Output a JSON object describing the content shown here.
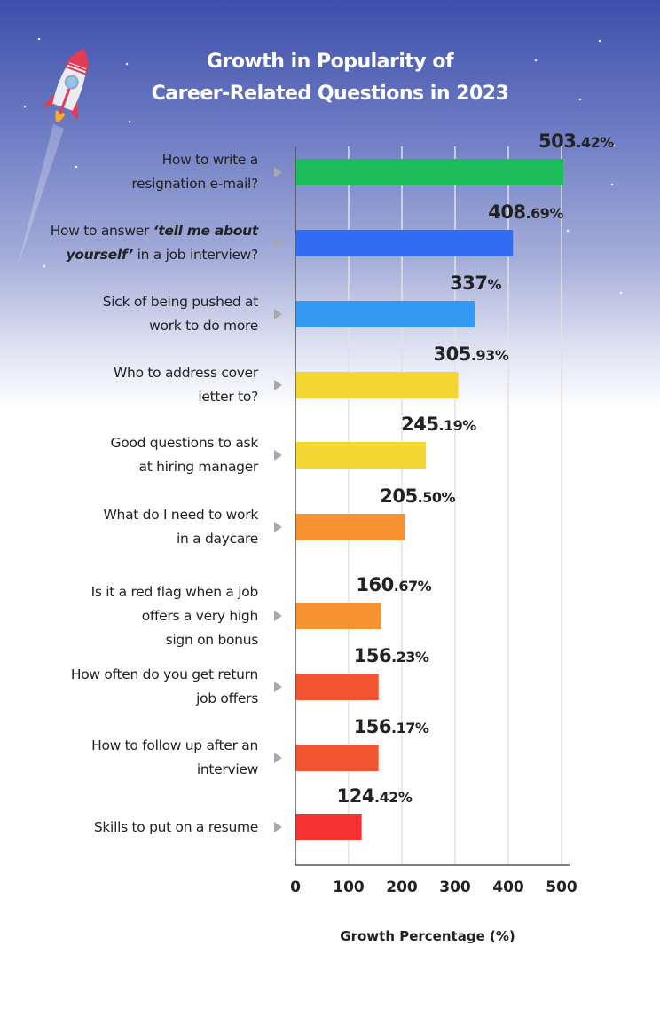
{
  "chart_data": {
    "type": "bar",
    "orientation": "horizontal",
    "title": "Growth in Popularity of Career-Related Questions in 2023",
    "title_lines": [
      "Growth in Popularity of",
      "Career-Related Questions in 2023"
    ],
    "xlabel": "Growth Percentage (%)",
    "ylabel": "",
    "xlim": [
      0,
      500
    ],
    "xticks": [
      "0",
      "100",
      "200",
      "300",
      "400",
      "500"
    ],
    "grid": true,
    "categories": [
      {
        "lines": [
          [
            [
              "How to write a",
              false
            ]
          ],
          [
            [
              "resignation e-mail?",
              false
            ]
          ]
        ],
        "value": 503.42,
        "label": "503.42%",
        "color": "#1dbd5b"
      },
      {
        "lines": [
          [
            [
              "How to answer ",
              false
            ],
            [
              "‘tell me about",
              true
            ]
          ],
          [
            [
              "yourself’",
              true
            ],
            [
              " in a job interview?",
              false
            ]
          ]
        ],
        "value": 408.69,
        "label": "408.69%",
        "color": "#316df3"
      },
      {
        "lines": [
          [
            [
              "Sick of being pushed at",
              false
            ]
          ],
          [
            [
              "work to do more",
              false
            ]
          ]
        ],
        "value": 337,
        "label": "337%",
        "color": "#3399f3"
      },
      {
        "lines": [
          [
            [
              "Who to address cover",
              false
            ]
          ],
          [
            [
              "letter to?",
              false
            ]
          ]
        ],
        "value": 305.93,
        "label": "305.93%",
        "color": "#f4d630"
      },
      {
        "lines": [
          [
            [
              "Good questions to ask",
              false
            ]
          ],
          [
            [
              "at hiring manager",
              false
            ]
          ]
        ],
        "value": 245.19,
        "label": "245.19%",
        "color": "#f4d630"
      },
      {
        "lines": [
          [
            [
              "What do I need to work",
              false
            ]
          ],
          [
            [
              "in a daycare",
              false
            ]
          ]
        ],
        "value": 205.5,
        "label": "205.50%",
        "color": "#f6922f"
      },
      {
        "lines": [
          [
            [
              "Is it a red flag when a job",
              false
            ]
          ],
          [
            [
              "offers a very high",
              false
            ]
          ],
          [
            [
              "sign on bonus",
              false
            ]
          ]
        ],
        "value": 160.67,
        "label": "160.67%",
        "color": "#f6922f"
      },
      {
        "lines": [
          [
            [
              "How often do you get return",
              false
            ]
          ],
          [
            [
              "job offers",
              false
            ]
          ]
        ],
        "value": 156.23,
        "label": "156.23%",
        "color": "#f35533"
      },
      {
        "lines": [
          [
            [
              "How to follow up after an",
              false
            ]
          ],
          [
            [
              "interview",
              false
            ]
          ]
        ],
        "value": 156.17,
        "label": "156.17%",
        "color": "#f35533"
      },
      {
        "lines": [
          [
            [
              "Skills to put on a resume",
              false
            ]
          ]
        ],
        "value": 124.42,
        "label": "124.42%",
        "color": "#f73232"
      }
    ]
  }
}
